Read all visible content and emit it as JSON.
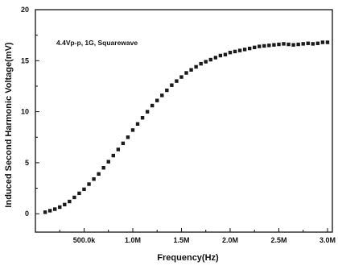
{
  "chart_data": {
    "type": "scatter",
    "title": "",
    "annotation": "4.4Vp-p, 1G, Squarewave",
    "xlabel": "Frequency(Hz)",
    "ylabel": "Induced Second Harmonic Voltage(mV)",
    "xlim": [
      0,
      3050000
    ],
    "ylim": [
      -1.8,
      20
    ],
    "x_ticks": [
      {
        "value": 500000,
        "label": "500.0k"
      },
      {
        "value": 1000000,
        "label": "1.0M"
      },
      {
        "value": 1500000,
        "label": "1.5M"
      },
      {
        "value": 2000000,
        "label": "2.0M"
      },
      {
        "value": 2500000,
        "label": "2.5M"
      },
      {
        "value": 3000000,
        "label": "3.0M"
      }
    ],
    "y_ticks": [
      {
        "value": 0,
        "label": "0"
      },
      {
        "value": 5,
        "label": "5"
      },
      {
        "value": 10,
        "label": "10"
      },
      {
        "value": 15,
        "label": "15"
      },
      {
        "value": 20,
        "label": "20"
      }
    ],
    "grid": false,
    "marker": "square",
    "marker_color": "#1a1a1a",
    "series": [
      {
        "x": [
          100000,
          150000,
          200000,
          250000,
          300000,
          350000,
          400000,
          450000,
          500000,
          550000,
          600000,
          650000,
          700000,
          750000,
          800000,
          850000,
          900000,
          950000,
          1000000,
          1050000,
          1100000,
          1150000,
          1200000,
          1250000,
          1300000,
          1350000,
          1400000,
          1450000,
          1500000,
          1550000,
          1600000,
          1650000,
          1700000,
          1750000,
          1800000,
          1850000,
          1900000,
          1950000,
          2000000,
          2050000,
          2100000,
          2150000,
          2200000,
          2250000,
          2300000,
          2350000,
          2400000,
          2450000,
          2500000,
          2550000,
          2600000,
          2650000,
          2700000,
          2750000,
          2800000,
          2850000,
          2900000,
          2950000,
          3000000
        ],
        "values": [
          0.15,
          0.3,
          0.45,
          0.65,
          0.9,
          1.2,
          1.6,
          2.0,
          2.4,
          2.9,
          3.4,
          3.9,
          4.5,
          5.1,
          5.7,
          6.3,
          6.9,
          7.5,
          8.2,
          8.8,
          9.4,
          10.0,
          10.6,
          11.1,
          11.6,
          12.1,
          12.6,
          13.0,
          13.4,
          13.8,
          14.1,
          14.4,
          14.7,
          14.9,
          15.1,
          15.3,
          15.5,
          15.6,
          15.8,
          15.9,
          16.0,
          16.1,
          16.2,
          16.3,
          16.4,
          16.45,
          16.5,
          16.55,
          16.6,
          16.65,
          16.6,
          16.55,
          16.6,
          16.65,
          16.7,
          16.65,
          16.7,
          16.8,
          16.8
        ]
      }
    ]
  }
}
